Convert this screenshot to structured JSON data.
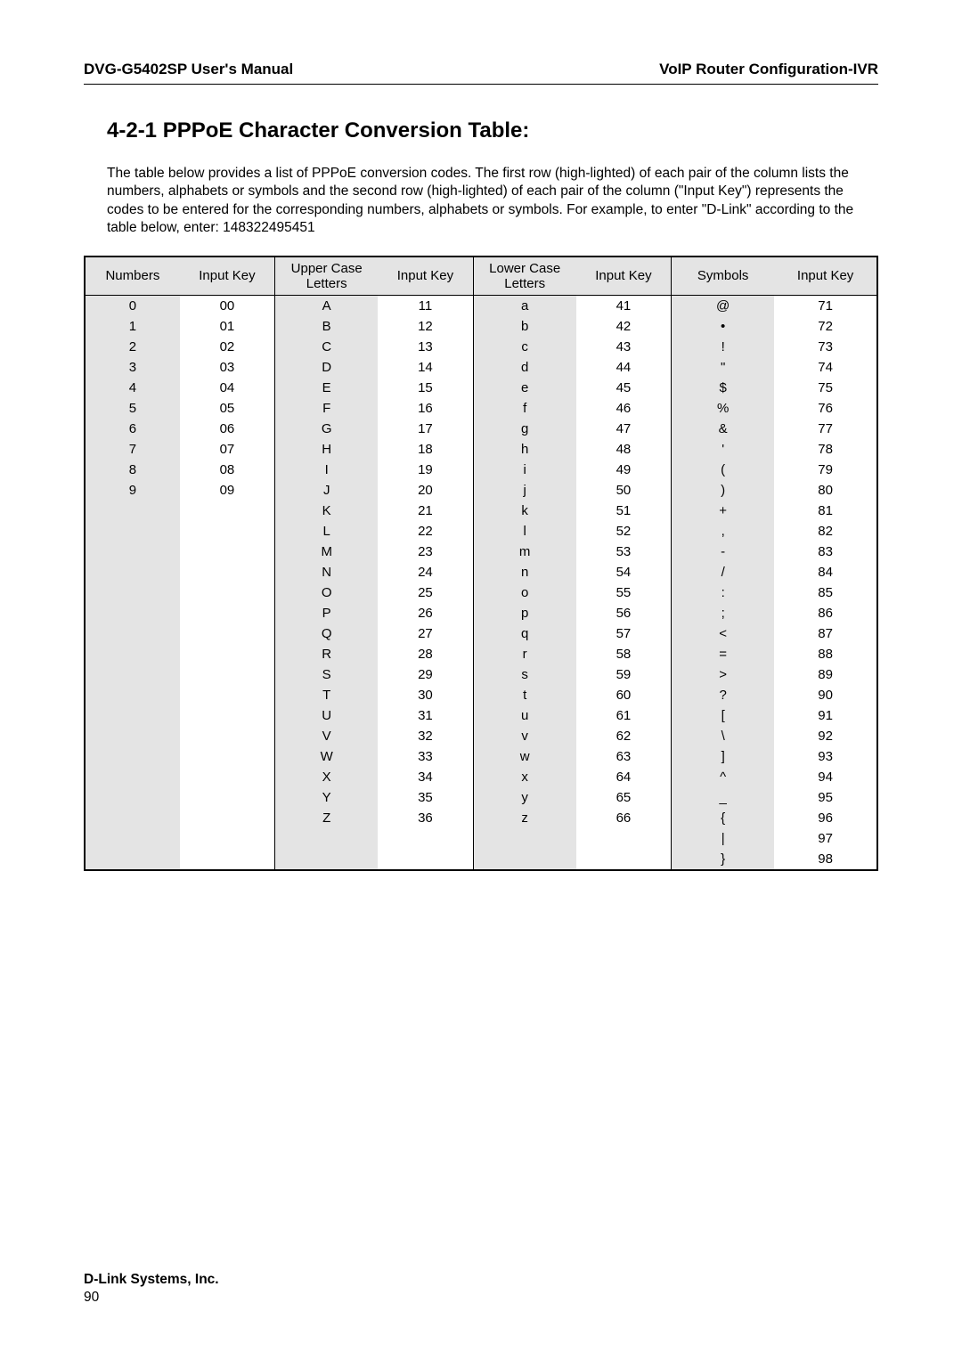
{
  "header": {
    "left": "DVG-G5402SP User's Manual",
    "right": "VoIP Router Configuration-IVR"
  },
  "title": "4-2-1 PPPoE Character Conversion Table:",
  "intro": "The table below provides a list of PPPoE conversion codes. The first row (high-lighted) of each pair of the column lists the numbers, alphabets or symbols and the second row (high-lighted) of each pair of the column (\"Input Key\") represents the codes to be entered for the corresponding numbers, alphabets or symbols. For example, to enter \"D-Link\" according to the table below, enter: 148322495451",
  "table": {
    "headers": [
      "Numbers",
      "Input Key",
      "Upper Case\nLetters",
      "Input Key",
      "Lower Case\nLetters",
      "Input Key",
      "Symbols",
      "Input Key"
    ],
    "shaded_cols": [
      0,
      2,
      4,
      6
    ],
    "col_widths": [
      "12%",
      "12%",
      "13%",
      "12%",
      "13%",
      "12%",
      "13%",
      "13%"
    ],
    "rows": [
      [
        "0",
        "00",
        "A",
        "11",
        "a",
        "41",
        "@",
        "71"
      ],
      [
        "1",
        "01",
        "B",
        "12",
        "b",
        "42",
        "•",
        "72"
      ],
      [
        "2",
        "02",
        "C",
        "13",
        "c",
        "43",
        "!",
        "73"
      ],
      [
        "3",
        "03",
        "D",
        "14",
        "d",
        "44",
        "\"",
        "74"
      ],
      [
        "4",
        "04",
        "E",
        "15",
        "e",
        "45",
        "$",
        "75"
      ],
      [
        "5",
        "05",
        "F",
        "16",
        "f",
        "46",
        "%",
        "76"
      ],
      [
        "6",
        "06",
        "G",
        "17",
        "g",
        "47",
        "&",
        "77"
      ],
      [
        "7",
        "07",
        "H",
        "18",
        "h",
        "48",
        "'",
        "78"
      ],
      [
        "8",
        "08",
        "I",
        "19",
        "i",
        "49",
        "(",
        "79"
      ],
      [
        "9",
        "09",
        "J",
        "20",
        "j",
        "50",
        ")",
        "80"
      ],
      [
        "",
        "",
        "K",
        "21",
        "k",
        "51",
        "+",
        "81"
      ],
      [
        "",
        "",
        "L",
        "22",
        "l",
        "52",
        ",",
        "82"
      ],
      [
        "",
        "",
        "M",
        "23",
        "m",
        "53",
        "-",
        "83"
      ],
      [
        "",
        "",
        "N",
        "24",
        "n",
        "54",
        "/",
        "84"
      ],
      [
        "",
        "",
        "O",
        "25",
        "o",
        "55",
        ":",
        "85"
      ],
      [
        "",
        "",
        "P",
        "26",
        "p",
        "56",
        ";",
        "86"
      ],
      [
        "",
        "",
        "Q",
        "27",
        "q",
        "57",
        "<",
        "87"
      ],
      [
        "",
        "",
        "R",
        "28",
        "r",
        "58",
        "=",
        "88"
      ],
      [
        "",
        "",
        "S",
        "29",
        "s",
        "59",
        ">",
        "89"
      ],
      [
        "",
        "",
        "T",
        "30",
        "t",
        "60",
        "?",
        "90"
      ],
      [
        "",
        "",
        "U",
        "31",
        "u",
        "61",
        "[",
        "91"
      ],
      [
        "",
        "",
        "V",
        "32",
        "v",
        "62",
        "\\",
        "92"
      ],
      [
        "",
        "",
        "W",
        "33",
        "w",
        "63",
        "]",
        "93"
      ],
      [
        "",
        "",
        "X",
        "34",
        "x",
        "64",
        "^",
        "94"
      ],
      [
        "",
        "",
        "Y",
        "35",
        "y",
        "65",
        "_",
        "95"
      ],
      [
        "",
        "",
        "Z",
        "36",
        "z",
        "66",
        "{",
        "96"
      ],
      [
        "",
        "",
        "",
        "",
        "",
        "",
        "|",
        "97"
      ],
      [
        "",
        "",
        "",
        "",
        "",
        "",
        "}",
        "98"
      ]
    ]
  },
  "footer": {
    "company": "D-Link Systems, Inc.",
    "page": "90"
  }
}
